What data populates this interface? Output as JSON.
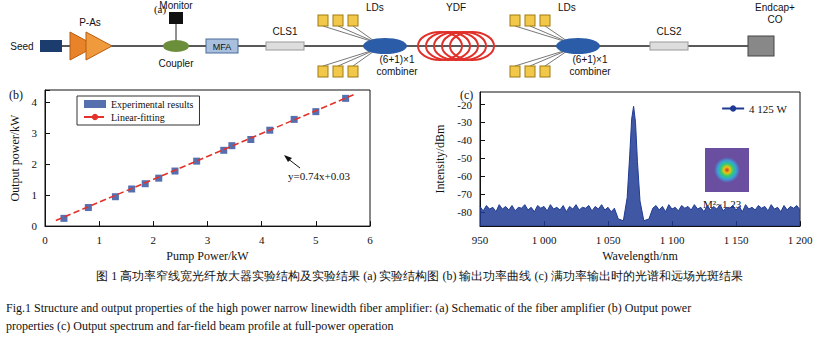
{
  "panel_a": {
    "label": "(a)",
    "seed": "Seed",
    "preamp": "P-As",
    "monitor": "Monitor",
    "coupler": "Coupler",
    "mfa": "MFA",
    "cls1": "CLS1",
    "lds_1": "LDs",
    "combiner_1": [
      "(6+1)×1",
      "combiner"
    ],
    "ydf": "YDF",
    "lds_2": "LDs",
    "combiner_2": [
      "(6+1)×1",
      "combiner"
    ],
    "cls2": "CLS2",
    "endcap": [
      "Endcap+",
      "CO"
    ]
  },
  "chart_data": [
    {
      "type": "scatter",
      "title": "(b)",
      "xlabel": "Pump Power/kW",
      "ylabel": "Output power/kW",
      "xlim": [
        0,
        6
      ],
      "xticks": [
        0,
        1,
        2,
        3,
        4,
        5,
        6
      ],
      "ylim": [
        0,
        4.4
      ],
      "yticks": [
        0,
        1,
        2,
        3,
        4
      ],
      "grid": false,
      "legend": "upper left",
      "annotations": [
        {
          "text": "y=0.74x+0.03"
        }
      ],
      "series": [
        {
          "name": "Experimental results",
          "type": "scatter",
          "marker": "square",
          "color": "#2b4b9b",
          "x": [
            0.35,
            0.8,
            1.3,
            1.6,
            1.85,
            2.1,
            2.4,
            2.8,
            3.3,
            3.45,
            3.8,
            4.15,
            4.6,
            5.0,
            5.55
          ],
          "values": [
            0.25,
            0.6,
            0.95,
            1.2,
            1.37,
            1.55,
            1.78,
            2.1,
            2.45,
            2.6,
            2.8,
            3.1,
            3.45,
            3.7,
            4.13
          ]
        },
        {
          "name": "Linear-fitting",
          "type": "line",
          "line_style": "dashed",
          "color": "#e4322b",
          "x": [
            0.2,
            5.7
          ],
          "values": [
            0.18,
            4.25
          ]
        }
      ]
    },
    {
      "type": "line",
      "title": "(c)",
      "xlabel": "Wavelength/nm",
      "ylabel": "Intensity/dBm",
      "xlim": [
        950,
        1200
      ],
      "xticks": [
        950,
        {
          "value": 1000,
          "label": "1 000"
        },
        {
          "value": 1050,
          "label": "1 050"
        },
        {
          "value": 1100,
          "label": "1 100"
        },
        {
          "value": 1150,
          "label": "1 150"
        },
        {
          "value": 1200,
          "label": "1 200"
        }
      ],
      "ylim": [
        -88,
        -13
      ],
      "yticks": [
        -80,
        -70,
        -60,
        -50,
        -40,
        -30,
        -20
      ],
      "grid": false,
      "legend": "upper right",
      "inset_label": "M²~1.23",
      "series": [
        {
          "name": "4 125 W",
          "color": "#1f3a93",
          "x": [
            950,
            952.5,
            955,
            957.5,
            960,
            962.5,
            965,
            967.5,
            970,
            972.5,
            975,
            977.5,
            980,
            982.5,
            985,
            987.5,
            990,
            992.5,
            995,
            997.5,
            1000,
            1002.5,
            1005,
            1007.5,
            1010,
            1012.5,
            1015,
            1017.5,
            1020,
            1022.5,
            1025,
            1027.5,
            1030,
            1032.5,
            1035,
            1037.5,
            1040,
            1042.5,
            1045,
            1047.5,
            1050,
            1052.5,
            1055,
            1058,
            1062,
            1065,
            1067,
            1068.5,
            1070,
            1071.5,
            1073,
            1075,
            1078,
            1082,
            1085,
            1087.5,
            1090,
            1092.5,
            1095,
            1097.5,
            1100,
            1102.5,
            1105,
            1107.5,
            1110,
            1112.5,
            1115,
            1117.5,
            1120,
            1122.5,
            1125,
            1127.5,
            1130,
            1132.5,
            1135,
            1137.5,
            1140,
            1142.5,
            1145,
            1147.5,
            1150,
            1152.5,
            1155,
            1157.5,
            1160,
            1162.5,
            1165,
            1167.5,
            1170,
            1172.5,
            1175,
            1177.5,
            1180,
            1182.5,
            1185,
            1187.5,
            1190,
            1192.5,
            1195,
            1197.5,
            1200
          ],
          "values": [
            -77,
            -79.5,
            -76.5,
            -78.5,
            -77.5,
            -80,
            -76,
            -78.5,
            -77,
            -79,
            -76.5,
            -79.5,
            -77.5,
            -78,
            -76,
            -79,
            -77.5,
            -80,
            -76.5,
            -78,
            -77,
            -79.5,
            -76,
            -78.5,
            -77.5,
            -79,
            -76.5,
            -80,
            -77,
            -78.5,
            -76,
            -79,
            -77.5,
            -78,
            -76.5,
            -79.5,
            -77,
            -78.5,
            -76,
            -79,
            -77.5,
            -80,
            -78,
            -84,
            -85,
            -72,
            -48,
            -28,
            -21,
            -30,
            -52,
            -74,
            -85,
            -84,
            -78,
            -76.5,
            -79,
            -77,
            -80,
            -76,
            -78.5,
            -77.5,
            -79.5,
            -76.5,
            -78,
            -77,
            -79,
            -76,
            -78.5,
            -77.5,
            -80,
            -76.5,
            -79,
            -77,
            -78.5,
            -76,
            -79.5,
            -77.5,
            -78,
            -76.5,
            -79,
            -77,
            -80,
            -76,
            -78.5,
            -77.5,
            -79,
            -76.5,
            -78,
            -77,
            -79.5,
            -76,
            -78.5,
            -77.5,
            -80,
            -76.5,
            -79,
            -77,
            -78,
            -76.5,
            -79
          ]
        }
      ]
    }
  ],
  "caption": {
    "zh": "图 1 高功率窄线宽光纤放大器实验结构及实验结果 (a) 实验结构图 (b) 输出功率曲线 (c) 满功率输出时的光谱和远场光斑结果",
    "en": [
      "Fig.1 Structure and output properties of the high power narrow linewidth fiber amplifier: (a) Schematic of the fiber amplifier (b) Output power",
      "properties (c) Output spectrum and far-field beam profile at full-power operation"
    ]
  }
}
